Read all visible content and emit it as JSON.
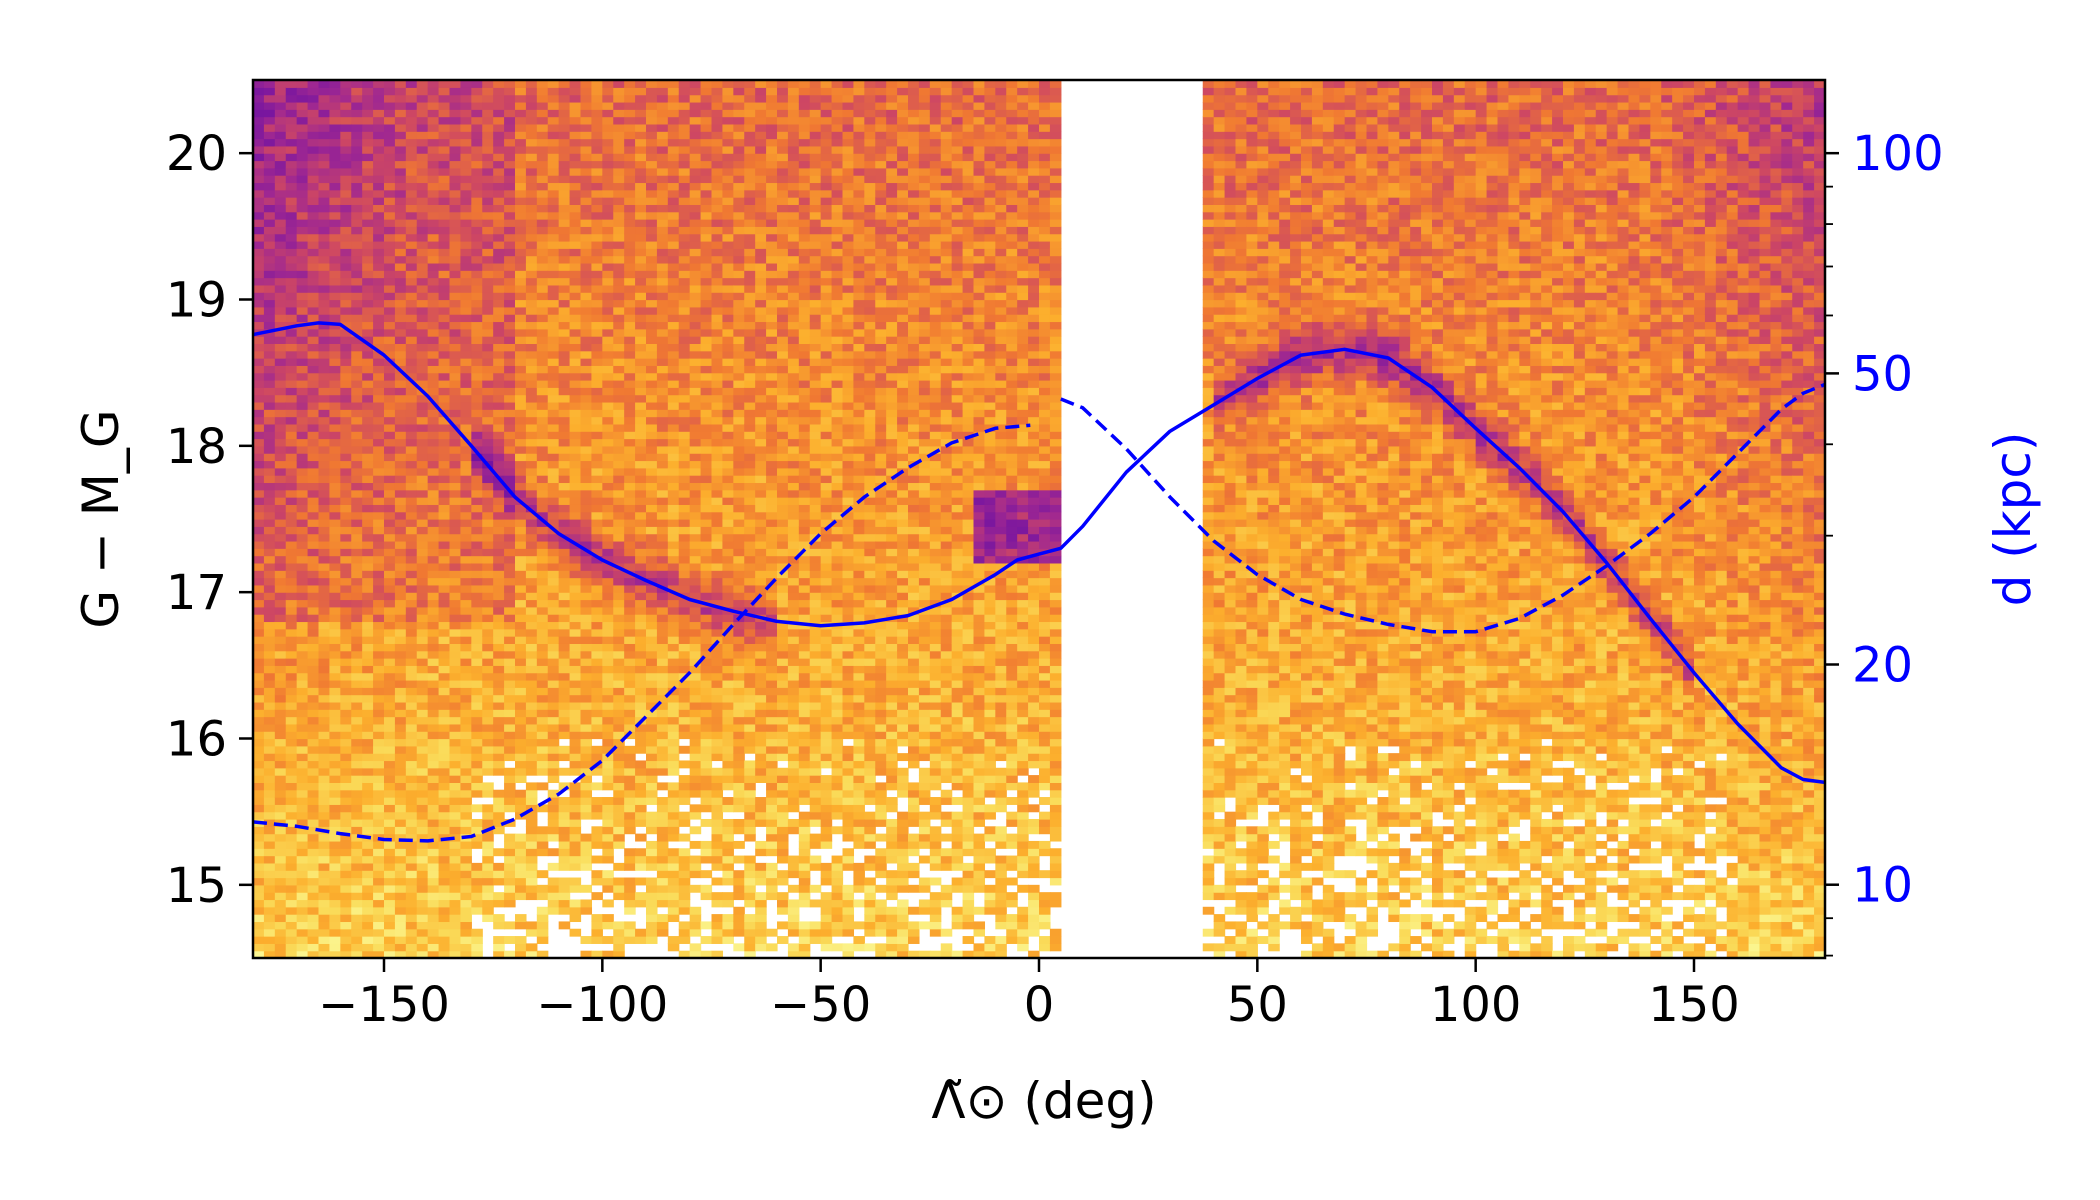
{
  "chart_data": {
    "type": "heatmap",
    "xlabel": "Λ̃⊙ (deg)",
    "ylabel": "G − M_G",
    "ylabel_right": "d (kpc)",
    "xlim": [
      -180,
      180
    ],
    "ylim": [
      14.5,
      20.5
    ],
    "y2lim_kpc": [
      7.94,
      125.9
    ],
    "y2_scale": "log",
    "xticks": [
      -150,
      -100,
      -50,
      0,
      50,
      100,
      150
    ],
    "xtick_labels": [
      "−150",
      "−100",
      "−50",
      "0",
      "50",
      "100",
      "150"
    ],
    "yticks": [
      15,
      16,
      17,
      18,
      19,
      20
    ],
    "ytick_labels": [
      "15",
      "16",
      "17",
      "18",
      "19",
      "20"
    ],
    "y2ticks": [
      10,
      20,
      50,
      100
    ],
    "y2tick_labels": [
      "10",
      "20",
      "50",
      "100"
    ],
    "y2_minor_ticks": [
      8,
      9,
      30,
      40,
      60,
      70,
      80,
      90
    ],
    "colormap": "plasma",
    "no_data_gap_x": [
      6,
      38
    ],
    "grid": false,
    "legend": "none",
    "colors": {
      "curves": "#0000ff",
      "right_axis": "#0000ff",
      "left_axis": "#000000"
    },
    "series": [
      {
        "style": "solid",
        "x": [
          -180,
          -170,
          -165,
          -160,
          -150,
          -140,
          -130,
          -120,
          -110,
          -100,
          -90,
          -80,
          -70,
          -60,
          -50,
          -40,
          -30,
          -20,
          -10,
          -5,
          0,
          5,
          10,
          20,
          30,
          40,
          50,
          60,
          70,
          80,
          90,
          100,
          110,
          120,
          130,
          140,
          150,
          160,
          170,
          175,
          180
        ],
        "y": [
          18.76,
          18.82,
          18.84,
          18.83,
          18.62,
          18.34,
          18.0,
          17.65,
          17.4,
          17.22,
          17.08,
          16.95,
          16.87,
          16.8,
          16.77,
          16.79,
          16.84,
          16.95,
          17.12,
          17.22,
          17.26,
          17.3,
          17.45,
          17.82,
          18.1,
          18.28,
          18.46,
          18.62,
          18.66,
          18.6,
          18.4,
          18.12,
          17.85,
          17.55,
          17.2,
          16.82,
          16.45,
          16.1,
          15.8,
          15.72,
          15.7
        ]
      },
      {
        "style": "dashed",
        "x": [
          -180,
          -170,
          -160,
          -150,
          -140,
          -130,
          -120,
          -110,
          -100,
          -90,
          -80,
          -70,
          -60,
          -50,
          -40,
          -30,
          -20,
          -10,
          -2
        ],
        "y": [
          15.43,
          15.4,
          15.35,
          15.31,
          15.3,
          15.33,
          15.45,
          15.62,
          15.85,
          16.15,
          16.45,
          16.78,
          17.1,
          17.4,
          17.65,
          17.85,
          18.02,
          18.12,
          18.14
        ]
      },
      {
        "style": "dashed",
        "x": [
          5,
          10,
          20,
          30,
          40,
          50,
          60,
          70,
          80,
          90,
          100,
          110,
          120,
          130,
          140,
          150,
          160,
          170,
          175,
          180
        ],
        "y": [
          18.32,
          18.26,
          17.98,
          17.65,
          17.35,
          17.12,
          16.95,
          16.85,
          16.78,
          16.73,
          16.73,
          16.82,
          16.98,
          17.18,
          17.4,
          17.65,
          17.95,
          18.25,
          18.36,
          18.42
        ]
      }
    ]
  }
}
